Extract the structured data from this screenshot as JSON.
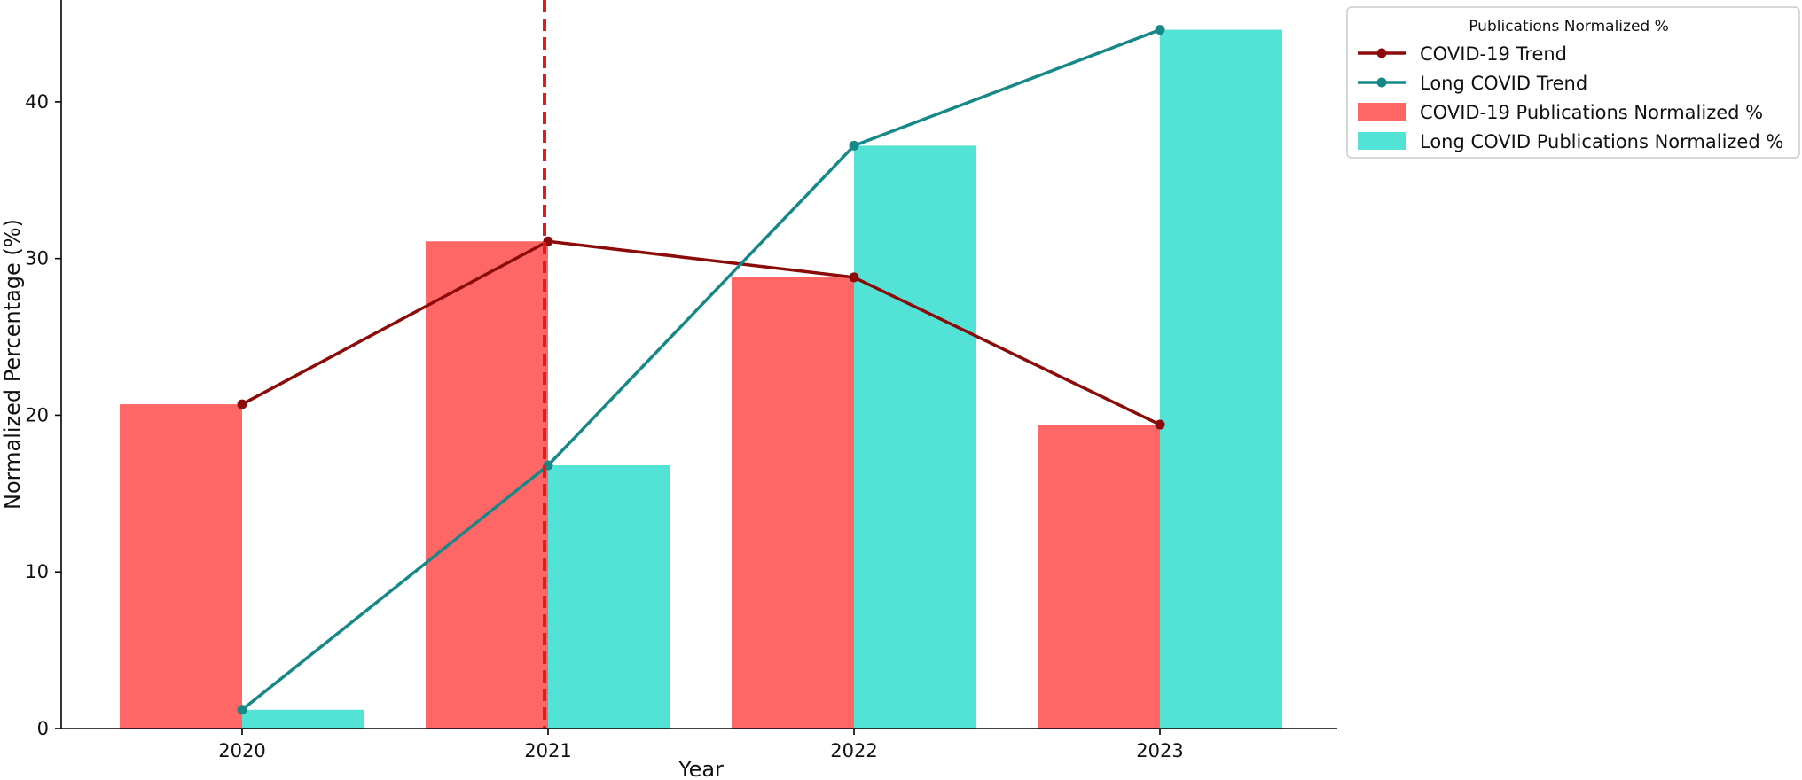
{
  "chart_data": {
    "type": "bar",
    "title": "",
    "xlabel": "Year",
    "ylabel": "Normalized Percentage (%)",
    "categories": [
      "2020",
      "2021",
      "2022",
      "2023"
    ],
    "ylim": [
      0,
      46.5
    ],
    "yticks": [
      0,
      10,
      20,
      30,
      40
    ],
    "ytick_labels": [
      "0",
      "10",
      "20",
      "30",
      "40"
    ],
    "grid": false,
    "legend": {
      "title": "Publications Normalized %",
      "placement": "upper right, outside plot"
    },
    "series": [
      {
        "name": "COVID-19 Publications Normalized %",
        "kind": "bar",
        "color": "#FF6666",
        "values": [
          20.7,
          31.1,
          28.8,
          19.4
        ]
      },
      {
        "name": "Long COVID Publications Normalized %",
        "kind": "bar",
        "color": "#52E3D6",
        "values": [
          1.2,
          16.8,
          37.2,
          44.6
        ]
      },
      {
        "name": "COVID-19 Trend",
        "kind": "line",
        "color": "#8B0A0A",
        "values": [
          20.7,
          31.1,
          28.8,
          19.4
        ]
      },
      {
        "name": "Long COVID Trend",
        "kind": "line",
        "color": "#168888",
        "values": [
          1.2,
          16.8,
          37.2,
          44.6
        ]
      }
    ],
    "annotations": [
      {
        "type": "vertical-dashed-line",
        "x": "2021",
        "color": "#E41A1C"
      }
    ]
  }
}
